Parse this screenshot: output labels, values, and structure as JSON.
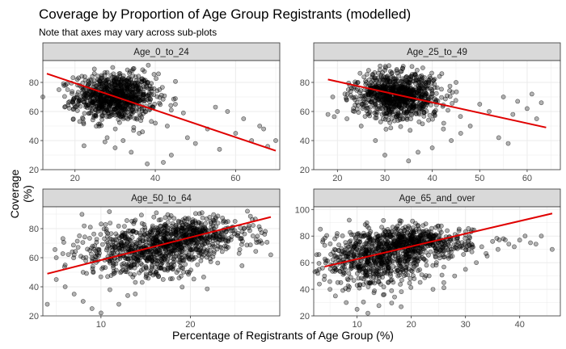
{
  "title": "Coverage by Proportion of Age Group Registrants (modelled)",
  "subtitle": "Note that axes may vary across sub-plots",
  "xlabel": "Percentage of Registrants of Age Group (%)",
  "ylabel": "Coverage (%)",
  "colors": {
    "point_fill": "#000000",
    "trend_line": "#e00000",
    "strip_bg": "#d9d9d9",
    "grid": "#ebebeb"
  },
  "chart_data": [
    {
      "type": "scatter",
      "panel": "Age_0_to_24",
      "xlim": [
        12,
        71
      ],
      "ylim": [
        20,
        95
      ],
      "xticks": [
        20,
        40,
        60
      ],
      "yticks": [
        20,
        40,
        60,
        80
      ],
      "trend": [
        [
          13,
          86
        ],
        [
          70,
          33
        ]
      ],
      "clusters": [
        {
          "cx": 30,
          "cy": 70,
          "sx": 5,
          "sy": 8,
          "n": 900
        }
      ],
      "points": [
        [
          55,
          63
        ],
        [
          58,
          60
        ],
        [
          62,
          55
        ],
        [
          66,
          50
        ],
        [
          48,
          42
        ],
        [
          50,
          38
        ],
        [
          44,
          30
        ],
        [
          42,
          25
        ],
        [
          38,
          24
        ],
        [
          60,
          45
        ],
        [
          64,
          40
        ],
        [
          67,
          48
        ],
        [
          56,
          34
        ],
        [
          53,
          48
        ],
        [
          47,
          59
        ],
        [
          45,
          65
        ],
        [
          40,
          52
        ],
        [
          36,
          45
        ],
        [
          32,
          40
        ],
        [
          28,
          42
        ],
        [
          70,
          40
        ],
        [
          68,
          36
        ],
        [
          12,
          70
        ],
        [
          16,
          75
        ],
        [
          20,
          63
        ],
        [
          22,
          55
        ],
        [
          26,
          50
        ],
        [
          30,
          35
        ],
        [
          34,
          32
        ],
        [
          43,
          50
        ]
      ]
    },
    {
      "type": "scatter",
      "panel": "Age_25_to_49",
      "xlim": [
        15,
        67
      ],
      "ylim": [
        20,
        95
      ],
      "xticks": [
        20,
        30,
        40,
        50,
        60
      ],
      "yticks": [
        20,
        40,
        60,
        80
      ],
      "trend": [
        [
          18,
          82
        ],
        [
          64,
          49
        ]
      ],
      "clusters": [
        {
          "cx": 33,
          "cy": 71,
          "sx": 4.5,
          "sy": 8,
          "n": 900
        }
      ],
      "points": [
        [
          50,
          65
        ],
        [
          52,
          60
        ],
        [
          55,
          70
        ],
        [
          58,
          67
        ],
        [
          60,
          62
        ],
        [
          62,
          55
        ],
        [
          48,
          50
        ],
        [
          46,
          45
        ],
        [
          44,
          40
        ],
        [
          40,
          35
        ],
        [
          37,
          32
        ],
        [
          35,
          26
        ],
        [
          30,
          30
        ],
        [
          28,
          40
        ],
        [
          25,
          50
        ],
        [
          22,
          55
        ],
        [
          20,
          60
        ],
        [
          19,
          70
        ],
        [
          18,
          58
        ],
        [
          56,
          38
        ],
        [
          54,
          42
        ],
        [
          63,
          66
        ],
        [
          61,
          72
        ],
        [
          57,
          58
        ],
        [
          45,
          80
        ],
        [
          42,
          86
        ],
        [
          38,
          90
        ]
      ]
    },
    {
      "type": "scatter",
      "panel": "Age_50_to_64",
      "xlim": [
        3.5,
        30
      ],
      "ylim": [
        20,
        95
      ],
      "xticks": [
        10,
        20
      ],
      "yticks": [
        20,
        40,
        60,
        80
      ],
      "trend": [
        [
          4,
          49
        ],
        [
          29,
          88
        ]
      ],
      "clusters": [
        {
          "cx": 15,
          "cy": 64,
          "sx": 3.5,
          "sy": 9,
          "n": 600
        },
        {
          "cx": 20,
          "cy": 75,
          "sx": 3.5,
          "sy": 6,
          "n": 500
        }
      ],
      "points": [
        [
          5,
          45
        ],
        [
          6,
          40
        ],
        [
          7,
          35
        ],
        [
          8,
          30
        ],
        [
          4,
          28
        ],
        [
          6,
          55
        ],
        [
          5,
          60
        ],
        [
          9,
          25
        ],
        [
          10,
          22
        ],
        [
          12,
          28
        ],
        [
          28,
          70
        ],
        [
          27,
          75
        ],
        [
          29,
          62
        ],
        [
          26,
          80
        ],
        [
          24,
          66
        ],
        [
          25,
          85
        ],
        [
          8,
          50
        ],
        [
          7,
          62
        ],
        [
          11,
          38
        ],
        [
          13,
          34
        ]
      ]
    },
    {
      "type": "scatter",
      "panel": "Age_65_and_over",
      "xlim": [
        2,
        47.5
      ],
      "ylim": [
        20,
        102
      ],
      "xticks": [
        10,
        20,
        30,
        40
      ],
      "yticks": [
        20,
        40,
        60,
        80,
        100
      ],
      "trend": [
        [
          4,
          57
        ],
        [
          46,
          97
        ]
      ],
      "clusters": [
        {
          "cx": 13,
          "cy": 62,
          "sx": 5,
          "sy": 10,
          "n": 600
        },
        {
          "cx": 21,
          "cy": 75,
          "sx": 5,
          "sy": 6,
          "n": 500
        }
      ],
      "points": [
        [
          35,
          76
        ],
        [
          37,
          78
        ],
        [
          38,
          74
        ],
        [
          40,
          77
        ],
        [
          42,
          75
        ],
        [
          44,
          80
        ],
        [
          46,
          70
        ],
        [
          33,
          72
        ],
        [
          36,
          70
        ],
        [
          39,
          72
        ],
        [
          41,
          80
        ],
        [
          32,
          60
        ],
        [
          34,
          65
        ],
        [
          5,
          40
        ],
        [
          6,
          35
        ],
        [
          8,
          30
        ],
        [
          10,
          25
        ],
        [
          12,
          22
        ],
        [
          4,
          50
        ],
        [
          3,
          55
        ],
        [
          7,
          45
        ],
        [
          28,
          50
        ],
        [
          30,
          55
        ],
        [
          26,
          45
        ],
        [
          24,
          40
        ],
        [
          43,
          74
        ]
      ]
    }
  ]
}
